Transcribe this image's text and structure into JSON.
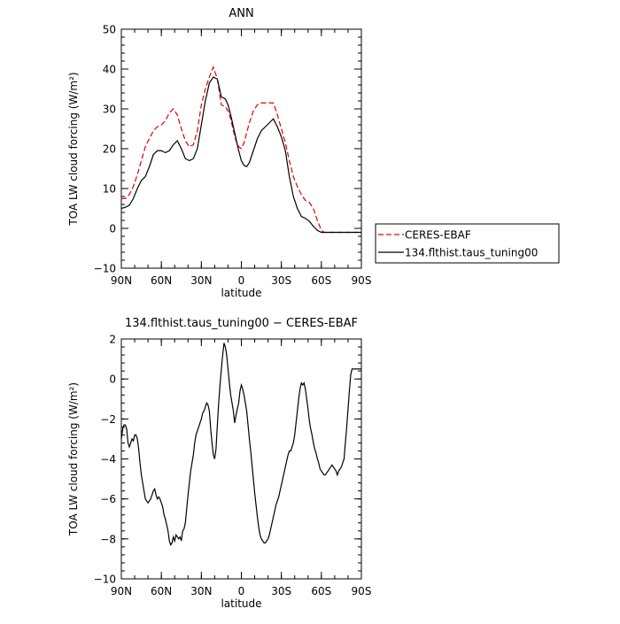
{
  "chart_data": [
    {
      "type": "line",
      "title": "ANN",
      "xlabel": "latitude",
      "ylabel": "TOA LW cloud forcing (W/m²)",
      "xlim": [
        90,
        -90
      ],
      "ylim": [
        -10,
        50
      ],
      "yticks": [
        -10,
        0,
        10,
        20,
        30,
        40,
        50
      ],
      "xticks": [
        90,
        60,
        30,
        0,
        -30,
        -60,
        -90
      ],
      "xticklabels": [
        "90N",
        "60N",
        "30N",
        "0",
        "30S",
        "60S",
        "90S"
      ],
      "legend": "right",
      "series": [
        {
          "name": "CERES-EBAF",
          "color": "#e00000",
          "dash": "dashed",
          "x": [
            90,
            87,
            84,
            81,
            78,
            75,
            72,
            69,
            66,
            63,
            60,
            57,
            54,
            51,
            48,
            45,
            42,
            39,
            36,
            33,
            30,
            27,
            24,
            21,
            18,
            15,
            12,
            10,
            8,
            6,
            4,
            2,
            0,
            -2,
            -4,
            -6,
            -9,
            -12,
            -15,
            -18,
            -21,
            -24,
            -27,
            -30,
            -33,
            -36,
            -39,
            -42,
            -45,
            -48,
            -51,
            -54,
            -57,
            -60,
            -62,
            -64,
            -66,
            -69,
            -72,
            -75,
            -78,
            -81,
            -84,
            -87,
            -90
          ],
          "values": [
            7.5,
            7.5,
            8.5,
            10.5,
            13.5,
            17,
            20.5,
            22.5,
            24.5,
            25.5,
            26,
            27,
            29,
            30,
            28.5,
            25,
            22,
            20.5,
            21,
            24.5,
            31,
            35,
            38,
            40.5,
            37.5,
            31,
            30.5,
            29.5,
            27.5,
            24.5,
            22,
            20.5,
            20,
            21.5,
            24,
            26.5,
            29.5,
            31,
            31.5,
            31.5,
            31.5,
            31.5,
            28.5,
            25,
            21.5,
            17,
            13,
            10.5,
            8.5,
            7,
            6.5,
            5,
            2,
            -0.5,
            -1,
            -1,
            -1,
            -1,
            -1,
            -1,
            -1,
            -1,
            -1,
            -1,
            -1
          ]
        },
        {
          "name": "134.flthist.taus_tuning00",
          "color": "#000000",
          "dash": "solid",
          "x": [
            90,
            87,
            84,
            81,
            78,
            75,
            72,
            69,
            66,
            63,
            60,
            57,
            54,
            51,
            48,
            45,
            42,
            39,
            36,
            33,
            30,
            27,
            24,
            21,
            18,
            15,
            12,
            10,
            8,
            6,
            4,
            2,
            0,
            -2,
            -4,
            -6,
            -9,
            -12,
            -15,
            -18,
            -21,
            -24,
            -27,
            -30,
            -33,
            -36,
            -39,
            -42,
            -45,
            -48,
            -51,
            -54,
            -57,
            -60,
            -62,
            -64,
            -66,
            -69,
            -72,
            -75,
            -78,
            -81,
            -84,
            -87,
            -90
          ],
          "values": [
            5,
            5.3,
            5.8,
            7.5,
            10,
            12,
            13,
            15.5,
            18.5,
            19.5,
            19.5,
            19,
            19.5,
            21,
            22,
            20,
            17.5,
            17,
            17.5,
            20,
            26,
            32,
            36.5,
            38,
            37.5,
            33,
            32.5,
            31,
            28.5,
            25.5,
            22.5,
            19.5,
            17,
            15.8,
            15.5,
            16.5,
            19.5,
            22.5,
            24.5,
            25.5,
            26.5,
            27.5,
            25.5,
            23,
            19.5,
            13,
            8,
            5,
            3,
            2.5,
            1.8,
            0.5,
            -0.5,
            -1,
            -1,
            -1,
            -1,
            -1,
            -1,
            -1,
            -1,
            -1,
            -1,
            -1,
            -1
          ]
        }
      ]
    },
    {
      "type": "line",
      "title": "134.flthist.taus_tuning00 − CERES-EBAF",
      "xlabel": "latitude",
      "ylabel": "TOA LW cloud forcing (W/m²)",
      "xlim": [
        90,
        -90
      ],
      "ylim": [
        -10,
        2
      ],
      "yticks": [
        -10,
        -8,
        -6,
        -4,
        -2,
        0,
        2
      ],
      "xticks": [
        90,
        60,
        30,
        0,
        -30,
        -60,
        -90
      ],
      "xticklabels": [
        "90N",
        "60N",
        "30N",
        "0",
        "30S",
        "60S",
        "90S"
      ],
      "series": [
        {
          "color": "#000000",
          "dash": "solid",
          "x": [
            90,
            89,
            88,
            87,
            86,
            85,
            84,
            83,
            82,
            81,
            80,
            79,
            78,
            77,
            76,
            75,
            74,
            73,
            72,
            71,
            70,
            69,
            68,
            67,
            66,
            65,
            64,
            63,
            62,
            61,
            60,
            59,
            58,
            57,
            56,
            55,
            54,
            53,
            52,
            51,
            50,
            49,
            48,
            47,
            46,
            45,
            44,
            43,
            42,
            41,
            40,
            39,
            38,
            37,
            36,
            35,
            34,
            33,
            32,
            31,
            30,
            29,
            28,
            27,
            26,
            25,
            24,
            23,
            22,
            21,
            20,
            19,
            18,
            17,
            16,
            15,
            14,
            13,
            12,
            11,
            10,
            9,
            8,
            7,
            6,
            5,
            4,
            3,
            2,
            1,
            0,
            -1,
            -2,
            -3,
            -4,
            -5,
            -6,
            -7,
            -8,
            -9,
            -10,
            -11,
            -12,
            -13,
            -14,
            -15,
            -16,
            -17,
            -18,
            -19,
            -20,
            -21,
            -22,
            -23,
            -24,
            -25,
            -26,
            -27,
            -28,
            -29,
            -30,
            -31,
            -32,
            -33,
            -34,
            -35,
            -36,
            -37,
            -38,
            -39,
            -40,
            -41,
            -42,
            -43,
            -44,
            -45,
            -46,
            -47,
            -48,
            -49,
            -50,
            -51,
            -52,
            -53,
            -54,
            -55,
            -56,
            -57,
            -58,
            -59,
            -60,
            -61,
            -62,
            -63,
            -64,
            -65,
            -66,
            -67,
            -68,
            -69,
            -70,
            -71,
            -72,
            -73,
            -74,
            -75,
            -76,
            -77,
            -78,
            -79,
            -80,
            -81,
            -82,
            -83,
            -84,
            -85,
            -86,
            -87,
            -88,
            -89,
            -90
          ],
          "values": [
            -3,
            -2.5,
            -2.3,
            -2.3,
            -2.5,
            -3.2,
            -3.4,
            -3.2,
            -3,
            -3.1,
            -2.8,
            -2.8,
            -3,
            -3.5,
            -4.2,
            -4.8,
            -5.2,
            -5.6,
            -6,
            -6.1,
            -6.2,
            -6.1,
            -6,
            -5.8,
            -5.6,
            -5.5,
            -5.8,
            -6,
            -5.9,
            -6,
            -6.2,
            -6.4,
            -6.8,
            -7,
            -7.3,
            -7.6,
            -8.1,
            -8.3,
            -8.2,
            -7.9,
            -8.1,
            -7.8,
            -7.9,
            -8,
            -7.9,
            -8.1,
            -7.6,
            -7.5,
            -7.2,
            -6.5,
            -5.8,
            -5.2,
            -4.6,
            -4.2,
            -3.8,
            -3.2,
            -2.8,
            -2.6,
            -2.4,
            -2.2,
            -2,
            -1.7,
            -1.6,
            -1.4,
            -1.2,
            -1.3,
            -1.6,
            -2.5,
            -3.2,
            -3.8,
            -4,
            -3.5,
            -2.3,
            -1.2,
            -0.3,
            0.5,
            1.2,
            1.8,
            1.6,
            1.2,
            0.5,
            -0.2,
            -0.8,
            -1.2,
            -1.6,
            -2.2,
            -1.8,
            -1.5,
            -1.2,
            -0.6,
            -0.3,
            -0.5,
            -0.8,
            -1.2,
            -1.6,
            -2.3,
            -3,
            -3.6,
            -4.3,
            -5,
            -5.7,
            -6.3,
            -6.9,
            -7.4,
            -7.8,
            -8,
            -8.1,
            -8.2,
            -8.2,
            -8.1,
            -8,
            -7.8,
            -7.5,
            -7.2,
            -6.9,
            -6.6,
            -6.3,
            -6.1,
            -5.9,
            -5.6,
            -5.3,
            -5,
            -4.7,
            -4.4,
            -4.1,
            -3.8,
            -3.6,
            -3.6,
            -3.4,
            -3.2,
            -2.8,
            -2.2,
            -1.6,
            -1,
            -0.5,
            -0.2,
            -0.3,
            -0.2,
            -0.5,
            -1,
            -1.5,
            -2.1,
            -2.5,
            -2.8,
            -3.2,
            -3.5,
            -3.7,
            -4,
            -4.2,
            -4.5,
            -4.6,
            -4.7,
            -4.8,
            -4.8,
            -4.7,
            -4.6,
            -4.5,
            -4.4,
            -4.3,
            -4.4,
            -4.5,
            -4.6,
            -4.8,
            -4.6,
            -4.5,
            -4.4,
            -4.2,
            -4,
            -3.2,
            -2.4,
            -1.5,
            -0.6,
            0.2,
            0.5,
            0.5,
            0.5,
            0.5,
            0.5,
            0.5,
            0.5,
            0.5
          ]
        }
      ]
    }
  ]
}
